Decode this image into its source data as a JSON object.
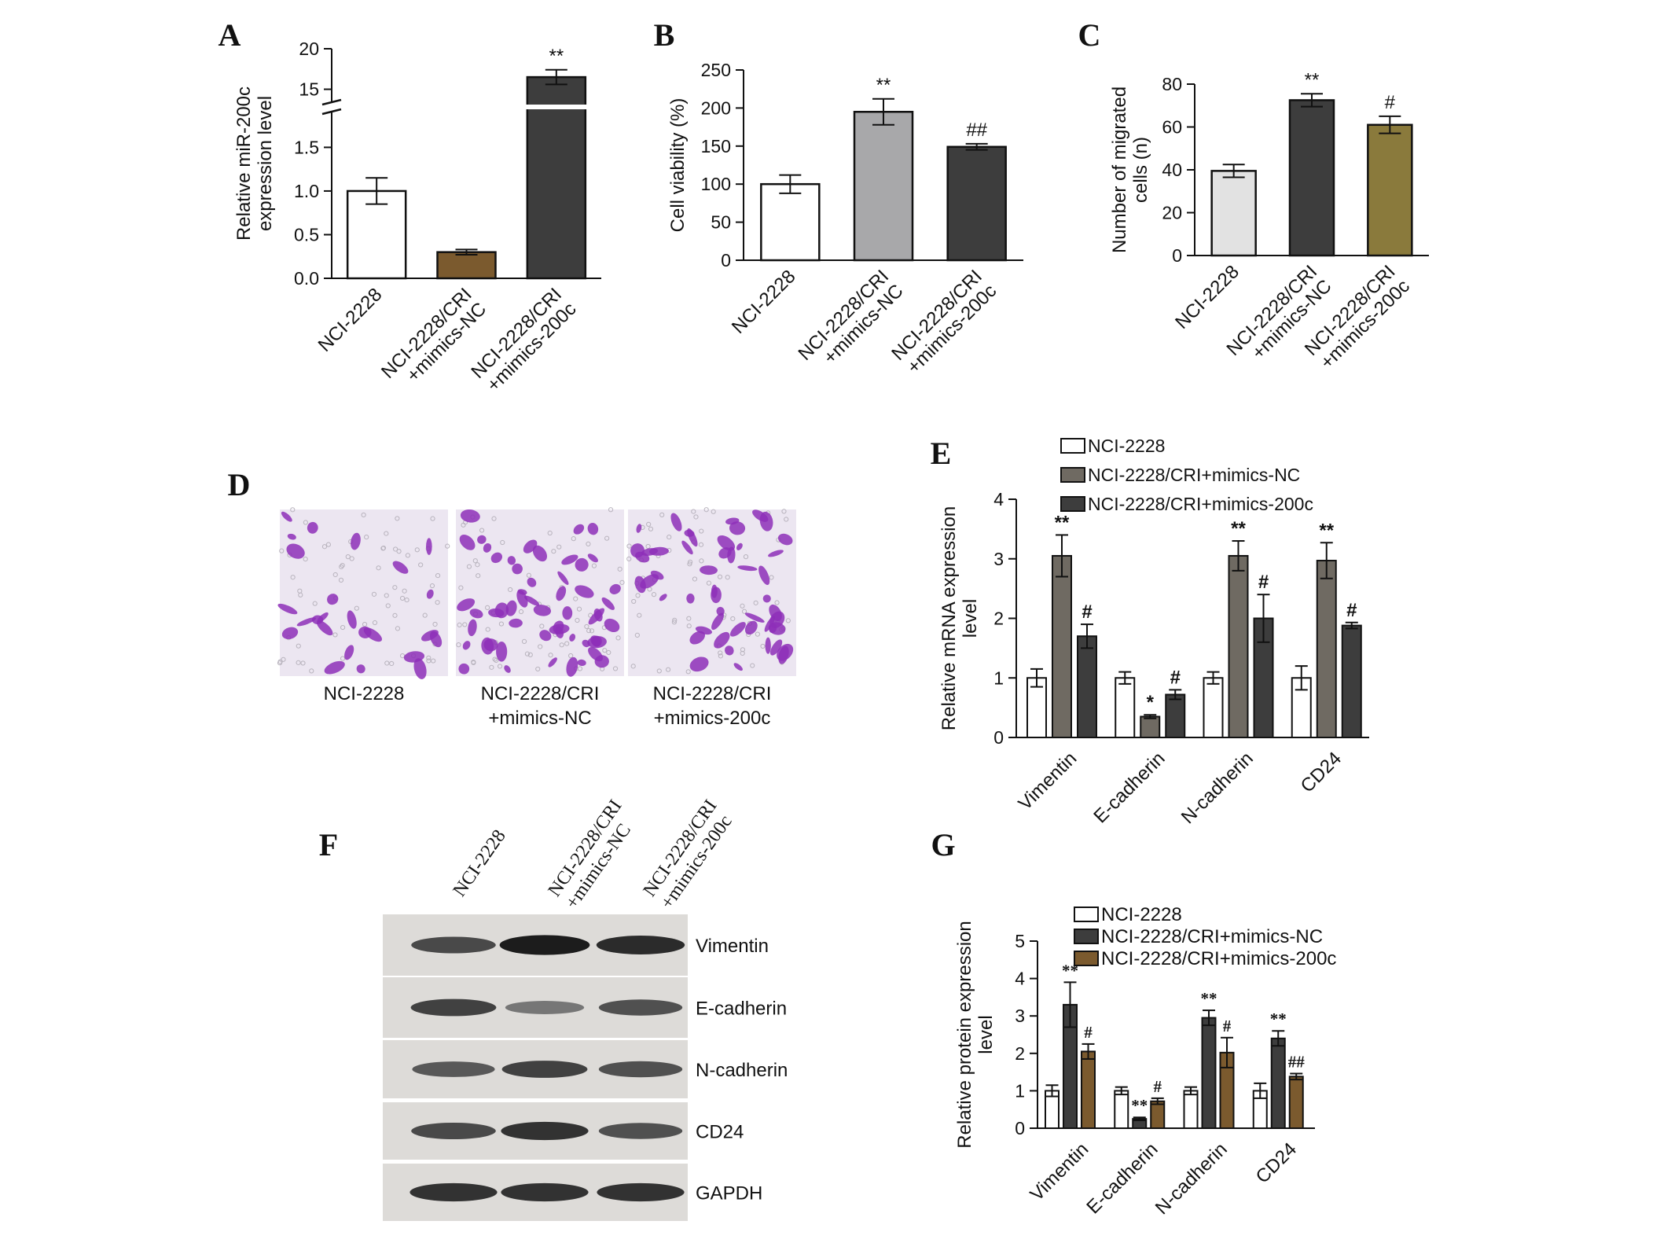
{
  "figure": {
    "panel_letters": [
      "A",
      "B",
      "C",
      "D",
      "E",
      "F",
      "G"
    ]
  },
  "colors": {
    "white": "#ffffff",
    "brown": "#7b5a2e",
    "dark": "#3d3d3d",
    "gray": "#a8a8aa",
    "light_gray": "#e2e2e2",
    "olive": "#8a7a3c",
    "taupe": "#6f6a62",
    "axis": "#111111",
    "stain": "#8e2fb8"
  },
  "chart_data": [
    {
      "panel": "A",
      "type": "bar",
      "ylabel": "Relative miR-200c expression level",
      "categories": [
        "NCI-2228",
        "NCI-2228/CRI +mimics-NC",
        "NCI-2228/CRI +mimics-200c"
      ],
      "values": [
        1.0,
        0.3,
        16.5
      ],
      "errors": [
        0.15,
        0.03,
        0.9
      ],
      "annotations": [
        "",
        "",
        "**"
      ],
      "bar_colors": [
        "white",
        "brown",
        "dark"
      ],
      "axis_break": {
        "lower_max": 1.9,
        "upper_min": 13.5,
        "upper_max": 20
      },
      "yticks": [
        "0.0",
        "0.5",
        "1.0",
        "1.5",
        "15",
        "20"
      ],
      "ylim": [
        0,
        20
      ]
    },
    {
      "panel": "B",
      "type": "bar",
      "ylabel": "Cell viability (%)",
      "categories": [
        "NCI-2228",
        "NCI-2228/CRI +mimics-NC",
        "NCI-2228/CRI +mimics-200c"
      ],
      "values": [
        100,
        195,
        149
      ],
      "errors": [
        12,
        17,
        4
      ],
      "annotations": [
        "",
        "**",
        "##"
      ],
      "bar_colors": [
        "white",
        "gray",
        "dark"
      ],
      "yticks": [
        "0",
        "50",
        "100",
        "150",
        "200",
        "250"
      ],
      "ylim": [
        0,
        250
      ]
    },
    {
      "panel": "C",
      "type": "bar",
      "ylabel": "Number of migrated cells (n)",
      "categories": [
        "NCI-2228",
        "NCI-2228/CRI +mimics-NC",
        "NCI-2228/CRI +mimics-200c"
      ],
      "values": [
        39.5,
        72.5,
        61
      ],
      "errors": [
        3,
        3,
        4
      ],
      "annotations": [
        "",
        "**",
        "#"
      ],
      "bar_colors": [
        "light_gray",
        "dark",
        "olive"
      ],
      "yticks": [
        "0",
        "20",
        "40",
        "60",
        "80"
      ],
      "ylim": [
        0,
        80
      ]
    },
    {
      "panel": "E",
      "type": "bar",
      "ylabel": "Relative mRNA expression level",
      "categories": [
        "Vimentin",
        "E-cadherin",
        "N-cadherin",
        "CD24"
      ],
      "series": [
        {
          "name": "NCI-2228",
          "values": [
            1.0,
            1.0,
            1.0,
            1.0
          ],
          "errors": [
            0.15,
            0.1,
            0.1,
            0.2
          ],
          "annotations": [
            "",
            "",
            "",
            ""
          ],
          "color": "white"
        },
        {
          "name": "NCI-2228/CRI+mimics-NC",
          "values": [
            3.05,
            0.35,
            3.05,
            2.97
          ],
          "errors": [
            0.35,
            0.03,
            0.25,
            0.3
          ],
          "annotations": [
            "**",
            "*",
            "**",
            "**"
          ],
          "color": "taupe"
        },
        {
          "name": "NCI-2228/CRI+mimics-200c",
          "values": [
            1.7,
            0.72,
            2.0,
            1.88
          ],
          "errors": [
            0.2,
            0.08,
            0.4,
            0.05
          ],
          "annotations": [
            "#",
            "#",
            "#",
            "#"
          ],
          "color": "dark"
        }
      ],
      "yticks": [
        "0",
        "1",
        "2",
        "3",
        "4"
      ],
      "ylim": [
        0,
        4
      ],
      "legend": "top"
    },
    {
      "panel": "G",
      "type": "bar",
      "ylabel": "Relative protein expression level",
      "categories": [
        "Vimentin",
        "E-cadherin",
        "N-cadherin",
        "CD24"
      ],
      "series": [
        {
          "name": "NCI-2228",
          "values": [
            1.0,
            1.0,
            1.0,
            1.0
          ],
          "errors": [
            0.15,
            0.1,
            0.1,
            0.2
          ],
          "annotations": [
            "",
            "",
            "",
            ""
          ],
          "color": "white"
        },
        {
          "name": "NCI-2228/CRI+mimics-NC",
          "values": [
            3.3,
            0.25,
            2.95,
            2.4
          ],
          "errors": [
            0.6,
            0.04,
            0.2,
            0.2
          ],
          "annotations": [
            "**",
            "**",
            "**",
            "**"
          ],
          "color": "dark"
        },
        {
          "name": "NCI-2228/CRI+mimics-200c",
          "values": [
            2.05,
            0.72,
            2.02,
            1.38
          ],
          "errors": [
            0.2,
            0.08,
            0.4,
            0.08
          ],
          "annotations": [
            "#",
            "#",
            "#",
            "##"
          ],
          "color": "brown"
        }
      ],
      "yticks": [
        "0",
        "1",
        "2",
        "3",
        "4",
        "5"
      ],
      "ylim": [
        0,
        5
      ],
      "legend": "top"
    }
  ],
  "panel_d": {
    "captions": [
      "NCI-2228",
      "NCI-2228/CRI\n+mimics-NC",
      "NCI-2228/CRI\n+mimics-200c"
    ],
    "cell_density": [
      0.45,
      1.0,
      0.9
    ]
  },
  "panel_f": {
    "lane_labels": [
      "NCI-2228",
      "NCI-2228/CRI\n+mimics-NC",
      "NCI-2228/CRI\n+mimics-200c"
    ],
    "proteins": [
      "Vimentin",
      "E-cadherin",
      "N-cadherin",
      "CD24",
      "GAPDH"
    ],
    "band_intensity": [
      [
        0.65,
        0.95,
        0.85
      ],
      [
        0.7,
        0.35,
        0.6
      ],
      [
        0.55,
        0.7,
        0.6
      ],
      [
        0.65,
        0.8,
        0.6
      ],
      [
        0.8,
        0.8,
        0.8
      ]
    ]
  }
}
